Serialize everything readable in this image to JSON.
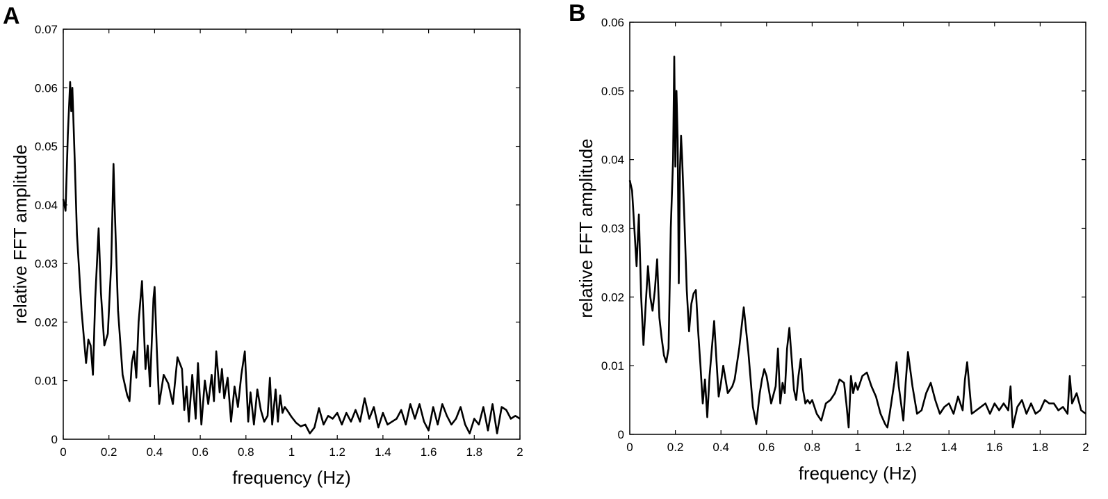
{
  "chart_data": [
    {
      "panel": "A",
      "type": "line",
      "xlabel": "frequency (Hz)",
      "ylabel": "relative FFT amplitude",
      "xlim": [
        0,
        2
      ],
      "ylim": [
        0,
        0.07
      ],
      "xticks": [
        0,
        0.2,
        0.4,
        0.6,
        0.8,
        1,
        1.2,
        1.4,
        1.6,
        1.8,
        2
      ],
      "xtick_labels": [
        "0",
        "0.2",
        "0.4",
        "0.6",
        "0.8",
        "1",
        "1.2",
        "1.4",
        "1.6",
        "1.8",
        "2"
      ],
      "yticks": [
        0,
        0.01,
        0.02,
        0.03,
        0.04,
        0.05,
        0.06,
        0.07
      ],
      "ytick_labels": [
        "0",
        "0.01",
        "0.02",
        "0.03",
        "0.04",
        "0.05",
        "0.06",
        "0.07"
      ],
      "grid": false,
      "series": [
        {
          "x": [
            0,
            0.01,
            0.02,
            0.03,
            0.035,
            0.04,
            0.05,
            0.06,
            0.08,
            0.1,
            0.11,
            0.12,
            0.13,
            0.14,
            0.155,
            0.165,
            0.18,
            0.195,
            0.21,
            0.22,
            0.225,
            0.24,
            0.26,
            0.28,
            0.29,
            0.3,
            0.31,
            0.32,
            0.33,
            0.345,
            0.36,
            0.37,
            0.38,
            0.395,
            0.4,
            0.41,
            0.42,
            0.44,
            0.46,
            0.48,
            0.5,
            0.52,
            0.53,
            0.54,
            0.55,
            0.565,
            0.58,
            0.59,
            0.605,
            0.62,
            0.635,
            0.65,
            0.66,
            0.67,
            0.685,
            0.695,
            0.705,
            0.72,
            0.735,
            0.75,
            0.765,
            0.78,
            0.795,
            0.81,
            0.82,
            0.835,
            0.85,
            0.865,
            0.88,
            0.895,
            0.905,
            0.915,
            0.93,
            0.94,
            0.95,
            0.96,
            0.97,
            0.98,
            1.0,
            1.02,
            1.04,
            1.06,
            1.08,
            1.1,
            1.12,
            1.14,
            1.16,
            1.18,
            1.2,
            1.22,
            1.24,
            1.26,
            1.28,
            1.3,
            1.32,
            1.34,
            1.36,
            1.38,
            1.4,
            1.42,
            1.44,
            1.46,
            1.48,
            1.5,
            1.52,
            1.54,
            1.56,
            1.58,
            1.6,
            1.62,
            1.64,
            1.66,
            1.68,
            1.7,
            1.72,
            1.74,
            1.76,
            1.78,
            1.8,
            1.82,
            1.84,
            1.86,
            1.88,
            1.9,
            1.92,
            1.94,
            1.96,
            1.98,
            2.0
          ],
          "y": [
            0.041,
            0.039,
            0.052,
            0.061,
            0.056,
            0.06,
            0.048,
            0.035,
            0.022,
            0.013,
            0.017,
            0.016,
            0.011,
            0.024,
            0.036,
            0.025,
            0.016,
            0.018,
            0.03,
            0.047,
            0.04,
            0.022,
            0.011,
            0.0075,
            0.0065,
            0.013,
            0.015,
            0.0105,
            0.02,
            0.027,
            0.012,
            0.016,
            0.009,
            0.024,
            0.026,
            0.015,
            0.006,
            0.011,
            0.0095,
            0.006,
            0.014,
            0.012,
            0.005,
            0.009,
            0.003,
            0.011,
            0.0035,
            0.013,
            0.0025,
            0.01,
            0.006,
            0.011,
            0.0065,
            0.015,
            0.008,
            0.012,
            0.007,
            0.0105,
            0.003,
            0.009,
            0.0055,
            0.011,
            0.015,
            0.003,
            0.008,
            0.0025,
            0.0085,
            0.005,
            0.003,
            0.004,
            0.0105,
            0.0025,
            0.0085,
            0.003,
            0.0075,
            0.0045,
            0.0055,
            0.005,
            0.0038,
            0.0028,
            0.0022,
            0.0025,
            0.001,
            0.002,
            0.0053,
            0.0025,
            0.004,
            0.0035,
            0.0045,
            0.0025,
            0.0045,
            0.003,
            0.005,
            0.003,
            0.007,
            0.0035,
            0.0055,
            0.002,
            0.0045,
            0.0025,
            0.003,
            0.0035,
            0.005,
            0.0025,
            0.006,
            0.0035,
            0.006,
            0.003,
            0.0015,
            0.0055,
            0.0025,
            0.006,
            0.004,
            0.0025,
            0.0035,
            0.0055,
            0.0025,
            0.001,
            0.0035,
            0.0025,
            0.0055,
            0.0015,
            0.006,
            0.001,
            0.0055,
            0.005,
            0.0035,
            0.004,
            0.0035
          ]
        }
      ]
    },
    {
      "panel": "B",
      "type": "line",
      "xlabel": "frequency (Hz)",
      "ylabel": "relative FFT amplitude",
      "xlim": [
        0,
        2
      ],
      "ylim": [
        0,
        0.06
      ],
      "xticks": [
        0,
        0.2,
        0.4,
        0.6,
        0.8,
        1,
        1.2,
        1.4,
        1.6,
        1.8,
        2
      ],
      "xtick_labels": [
        "0",
        "0.2",
        "0.4",
        "0.6",
        "0.8",
        "1",
        "1.2",
        "1.4",
        "1.6",
        "1.8",
        "2"
      ],
      "yticks": [
        0,
        0.01,
        0.02,
        0.03,
        0.04,
        0.05,
        0.06
      ],
      "ytick_labels": [
        "0",
        "0.01",
        "0.02",
        "0.03",
        "0.04",
        "0.05",
        "0.06"
      ],
      "grid": false,
      "series": [
        {
          "x": [
            0,
            0.01,
            0.02,
            0.03,
            0.04,
            0.05,
            0.06,
            0.07,
            0.08,
            0.09,
            0.1,
            0.11,
            0.12,
            0.13,
            0.14,
            0.15,
            0.16,
            0.17,
            0.18,
            0.19,
            0.195,
            0.2,
            0.205,
            0.21,
            0.215,
            0.22,
            0.225,
            0.23,
            0.24,
            0.25,
            0.26,
            0.27,
            0.28,
            0.29,
            0.3,
            0.31,
            0.32,
            0.33,
            0.34,
            0.35,
            0.36,
            0.37,
            0.38,
            0.39,
            0.4,
            0.41,
            0.42,
            0.43,
            0.44,
            0.45,
            0.46,
            0.48,
            0.5,
            0.52,
            0.54,
            0.555,
            0.57,
            0.58,
            0.59,
            0.6,
            0.62,
            0.64,
            0.65,
            0.66,
            0.67,
            0.68,
            0.69,
            0.7,
            0.71,
            0.72,
            0.73,
            0.74,
            0.75,
            0.76,
            0.77,
            0.78,
            0.79,
            0.8,
            0.82,
            0.84,
            0.86,
            0.88,
            0.9,
            0.92,
            0.94,
            0.95,
            0.96,
            0.97,
            0.98,
            0.99,
            1.0,
            1.02,
            1.04,
            1.06,
            1.08,
            1.1,
            1.12,
            1.13,
            1.14,
            1.16,
            1.17,
            1.18,
            1.2,
            1.21,
            1.22,
            1.24,
            1.26,
            1.28,
            1.3,
            1.32,
            1.34,
            1.36,
            1.38,
            1.4,
            1.42,
            1.44,
            1.46,
            1.47,
            1.48,
            1.5,
            1.52,
            1.54,
            1.56,
            1.58,
            1.6,
            1.62,
            1.64,
            1.66,
            1.67,
            1.68,
            1.7,
            1.72,
            1.74,
            1.76,
            1.78,
            1.8,
            1.82,
            1.84,
            1.86,
            1.88,
            1.9,
            1.92,
            1.93,
            1.94,
            1.96,
            1.98,
            2.0
          ],
          "y": [
            0.037,
            0.0355,
            0.03,
            0.0245,
            0.032,
            0.02,
            0.013,
            0.019,
            0.0245,
            0.02,
            0.018,
            0.021,
            0.0255,
            0.017,
            0.014,
            0.0115,
            0.0105,
            0.0125,
            0.03,
            0.04,
            0.055,
            0.039,
            0.05,
            0.043,
            0.022,
            0.0385,
            0.0435,
            0.04,
            0.031,
            0.021,
            0.015,
            0.019,
            0.0205,
            0.021,
            0.015,
            0.01,
            0.0045,
            0.008,
            0.0025,
            0.0085,
            0.0125,
            0.0165,
            0.011,
            0.0055,
            0.0075,
            0.01,
            0.008,
            0.006,
            0.0065,
            0.007,
            0.008,
            0.0125,
            0.0185,
            0.012,
            0.004,
            0.0015,
            0.006,
            0.008,
            0.0095,
            0.0085,
            0.0045,
            0.007,
            0.0125,
            0.0045,
            0.0075,
            0.006,
            0.0125,
            0.0155,
            0.011,
            0.0065,
            0.005,
            0.0085,
            0.011,
            0.0065,
            0.0045,
            0.005,
            0.0045,
            0.005,
            0.003,
            0.002,
            0.0045,
            0.005,
            0.006,
            0.008,
            0.0075,
            0.0045,
            0.001,
            0.0085,
            0.006,
            0.0075,
            0.0065,
            0.0085,
            0.009,
            0.007,
            0.0055,
            0.003,
            0.0015,
            0.001,
            0.003,
            0.0075,
            0.0105,
            0.007,
            0.002,
            0.0075,
            0.012,
            0.007,
            0.003,
            0.0035,
            0.006,
            0.0075,
            0.005,
            0.003,
            0.004,
            0.0045,
            0.003,
            0.0055,
            0.0035,
            0.008,
            0.0105,
            0.003,
            0.0035,
            0.004,
            0.0045,
            0.003,
            0.0045,
            0.0035,
            0.0045,
            0.0035,
            0.007,
            0.001,
            0.004,
            0.005,
            0.003,
            0.0045,
            0.003,
            0.0035,
            0.005,
            0.0045,
            0.0045,
            0.0035,
            0.004,
            0.003,
            0.0085,
            0.0045,
            0.006,
            0.0035,
            0.003
          ]
        }
      ]
    }
  ]
}
